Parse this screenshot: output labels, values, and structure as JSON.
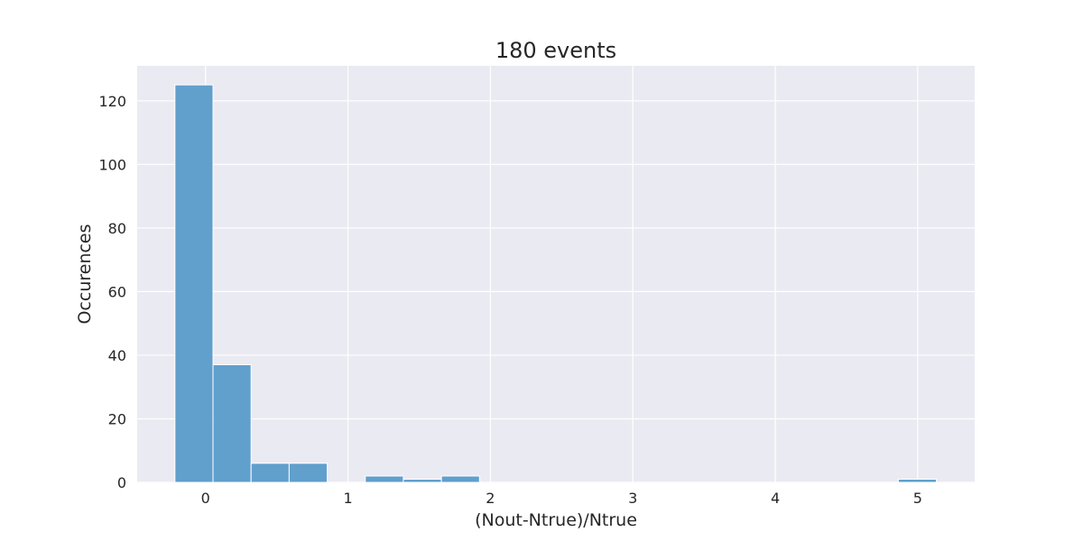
{
  "chart_data": {
    "type": "bar",
    "title": "180 events",
    "xlabel": "(Nout-Ntrue)/Ntrue",
    "ylabel": "Occurences",
    "bin_edges": [
      -0.215,
      0.0523,
      0.3196,
      0.5869,
      0.8542,
      1.1215,
      1.3888,
      1.6561,
      1.9234,
      2.1907,
      2.458,
      2.7253,
      2.9926,
      3.2599,
      3.5272,
      3.7945,
      4.0618,
      4.3291,
      4.5964,
      4.8637,
      5.131
    ],
    "values": [
      125,
      37,
      6,
      6,
      0,
      2,
      1,
      2,
      0,
      0,
      0,
      0,
      0,
      0,
      0,
      0,
      0,
      0,
      0,
      1
    ],
    "xlim": [
      -0.48,
      5.4
    ],
    "ylim": [
      0,
      131
    ],
    "xticks": [
      0,
      1,
      2,
      3,
      4,
      5
    ],
    "yticks": [
      0,
      20,
      40,
      60,
      80,
      100,
      120
    ],
    "grid": true,
    "bar_color": "#5a9bc9",
    "background_color": "#eaeaf2",
    "grid_color": "#ffffff"
  }
}
